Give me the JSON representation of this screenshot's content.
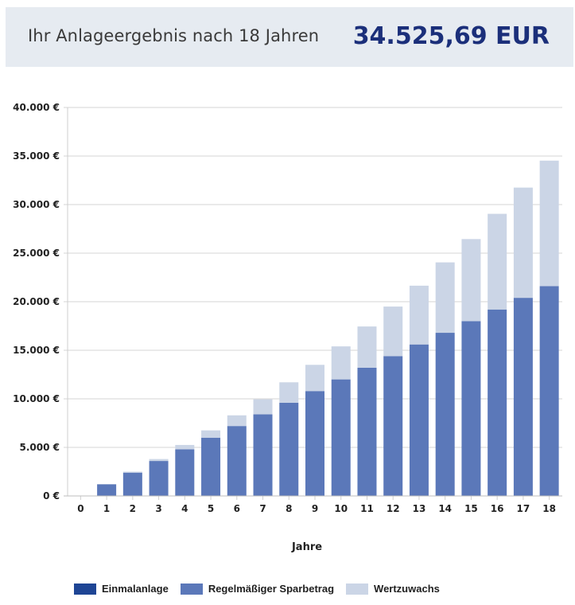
{
  "header": {
    "title": "Ihr Anlageergebnis nach 18 Jahren",
    "value": "34.525,69 EUR"
  },
  "colors": {
    "einmalanlage": "#1e4594",
    "sparbetrag": "#5b78b9",
    "wertzuwachs": "#cbd5e6",
    "header_bg": "#e6ebf1",
    "header_value": "#1b2f7a"
  },
  "chart_data": {
    "type": "bar",
    "stacked": true,
    "title": "",
    "xlabel": "Jahre",
    "ylabel": "",
    "categories": [
      "0",
      "1",
      "2",
      "3",
      "4",
      "5",
      "6",
      "7",
      "8",
      "9",
      "10",
      "11",
      "12",
      "13",
      "14",
      "15",
      "16",
      "17",
      "18"
    ],
    "ylim": [
      0,
      40000
    ],
    "yticks": [
      0,
      5000,
      10000,
      15000,
      20000,
      25000,
      30000,
      35000,
      40000
    ],
    "ytick_labels": [
      "0 €",
      "5.000 €",
      "10.000 €",
      "15.000 €",
      "20.000 €",
      "25.000 €",
      "30.000 €",
      "35.000 €",
      "40.000 €"
    ],
    "grid": true,
    "legend_position": "bottom",
    "series": [
      {
        "name": "Einmalanlage",
        "values": [
          0,
          0,
          0,
          0,
          0,
          0,
          0,
          0,
          0,
          0,
          0,
          0,
          0,
          0,
          0,
          0,
          0,
          0,
          0
        ]
      },
      {
        "name": "Regelmäßiger Sparbetrag",
        "values": [
          0,
          1200,
          2400,
          3600,
          4800,
          6000,
          7200,
          8400,
          9600,
          10800,
          12000,
          13200,
          14400,
          15600,
          16800,
          18000,
          19200,
          20400,
          21600
        ]
      },
      {
        "name": "Wertzuwachs",
        "values": [
          0,
          30,
          100,
          200,
          450,
          750,
          1100,
          1550,
          2100,
          2700,
          3400,
          4250,
          5100,
          6050,
          7250,
          8450,
          9850,
          11350,
          12926
        ]
      }
    ]
  },
  "legend": [
    {
      "label": "Einmalanlage"
    },
    {
      "label": "Regelmäßiger Sparbetrag"
    },
    {
      "label": "Wertzuwachs"
    }
  ]
}
